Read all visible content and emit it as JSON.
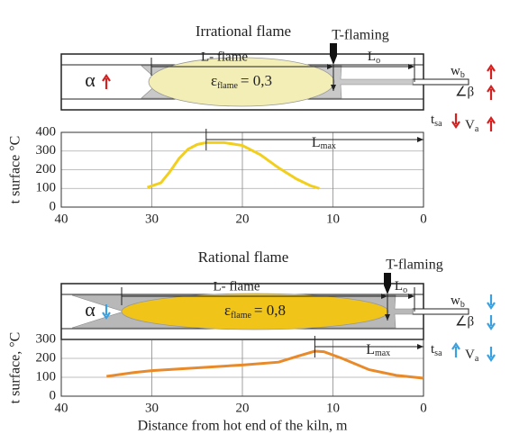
{
  "panels": [
    {
      "title": "Irrational flame",
      "t_flaming": "T-flaming",
      "l_flame": "L- flame",
      "lo": {
        "main": "L",
        "sub": "o"
      },
      "alpha": "α",
      "epsilon": {
        "main": "ε",
        "sub": "flame",
        "rest": "= 0,3"
      },
      "wb": {
        "main": "w",
        "sub": "b"
      },
      "beta": "∠β",
      "tsa": {
        "main": "t",
        "sub": "sa"
      },
      "va": {
        "main": "V",
        "sub": "a"
      }
    },
    {
      "title": "Rational flame",
      "t_flaming": "T-flaming",
      "l_flame": "L- flame",
      "lo": {
        "main": "L",
        "sub": "o"
      },
      "alpha": "α",
      "epsilon": {
        "main": "ε",
        "sub": "flame",
        "rest": "= 0,8"
      },
      "wb": {
        "main": "w",
        "sub": "b"
      },
      "beta": "∠β",
      "tsa": {
        "main": "t",
        "sub": "sa"
      },
      "va": {
        "main": "V",
        "sub": "a"
      }
    }
  ],
  "chart_data": [
    {
      "type": "line",
      "y_label": "t surface °C",
      "x": [
        30.5,
        29,
        28,
        27,
        26,
        25,
        24,
        22,
        20,
        18,
        16,
        14,
        12.5,
        11.5
      ],
      "series": [
        {
          "color": "#f2cf1d",
          "values": [
            105,
            130,
            190,
            260,
            310,
            335,
            345,
            345,
            330,
            280,
            210,
            150,
            115,
            100
          ]
        }
      ],
      "xlim": [
        40,
        0
      ],
      "xticks": [
        40,
        30,
        20,
        10,
        0
      ],
      "ylim": [
        0,
        400
      ],
      "yticks": [
        0,
        100,
        200,
        300,
        400
      ],
      "grid": true,
      "annotation": {
        "main": "L",
        "sub": "max"
      }
    },
    {
      "type": "line",
      "y_label": "t surface, °C",
      "x_label": "Distance from hot end of the kiln, m",
      "x": [
        35,
        32,
        30,
        25,
        20,
        16,
        14,
        12,
        11,
        9,
        6,
        3,
        0
      ],
      "series": [
        {
          "color": "#e98a2a",
          "values": [
            105,
            125,
            135,
            150,
            165,
            180,
            210,
            238,
            235,
            200,
            140,
            110,
            95
          ]
        }
      ],
      "xlim": [
        40,
        0
      ],
      "xticks": [
        40,
        30,
        20,
        10,
        0
      ],
      "ylim": [
        0,
        300
      ],
      "yticks": [
        0,
        100,
        200,
        300
      ],
      "grid": true,
      "annotation": {
        "main": "L",
        "sub": "max"
      }
    }
  ]
}
